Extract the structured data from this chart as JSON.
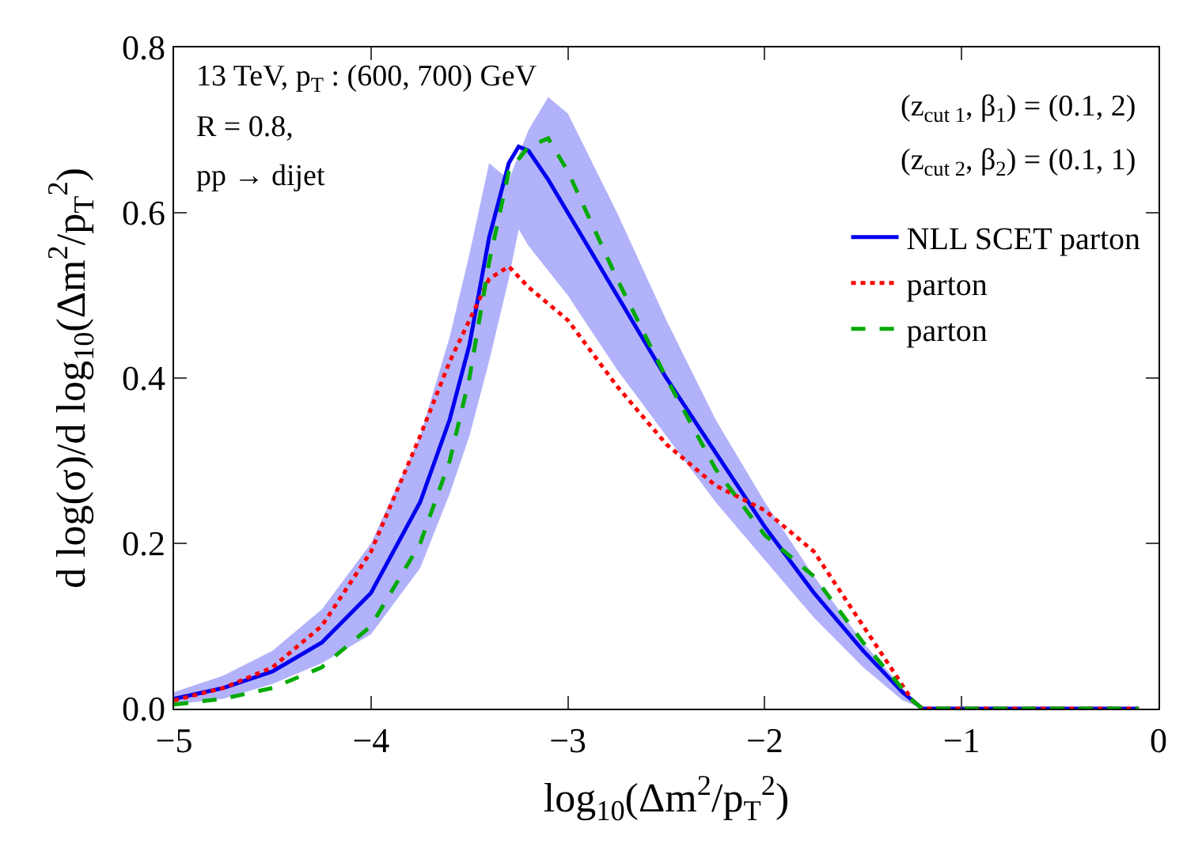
{
  "chart_data": {
    "type": "line",
    "xlabel": "log$_{10}$(Δm$^{2}$/p$_{T}$$^{2}$)",
    "ylabel": "d log(σ)/d log$_{10}$(Δm$^{2}$/p$_{T}$$^{2}$)",
    "xlim": [
      -5,
      0
    ],
    "xticks": [
      -5,
      -4,
      -3,
      -2,
      -1,
      0
    ],
    "ylim": [
      0,
      0.8
    ],
    "yticks": [
      {
        "value": 0,
        "label": "0.0"
      },
      {
        "value": 0.2,
        "label": "0.2"
      },
      {
        "value": 0.4,
        "label": "0.4"
      },
      {
        "value": 0.6,
        "label": "0.6"
      },
      {
        "value": 0.8,
        "label": "0.8"
      }
    ],
    "legend": "top right",
    "marker": "none",
    "annotations": [
      "13 TeV, p$_{T}$ : (600, 700) GeV",
      "R = 0.8,",
      "pp → dijet",
      "(z$_{cut 1}$, β$_{1}$) = (0.1, 2)",
      "(z$_{cut 2}$, β$_{2}$) = (0.1, 1)"
    ],
    "series": [
      {
        "name": "NLL SCET parton",
        "color": "#0000ee",
        "line_style": "solid",
        "x": [
          -5,
          -4.75,
          -4.5,
          -4.25,
          -4,
          -3.75,
          -3.6,
          -3.5,
          -3.4,
          -3.3,
          -3.25,
          -3.2,
          -3.1,
          -3,
          -2.75,
          -2.5,
          -2.25,
          -2,
          -1.75,
          -1.5,
          -1.3,
          -1.2,
          -1,
          -0.5,
          -0.1
        ],
        "values": [
          0.012,
          0.025,
          0.045,
          0.08,
          0.14,
          0.25,
          0.35,
          0.44,
          0.57,
          0.66,
          0.68,
          0.675,
          0.64,
          0.6,
          0.5,
          0.4,
          0.31,
          0.22,
          0.14,
          0.07,
          0.02,
          0,
          0,
          0,
          0
        ],
        "lower": [
          0.005,
          0.012,
          0.03,
          0.055,
          0.09,
          0.17,
          0.26,
          0.33,
          0.42,
          0.52,
          0.58,
          0.56,
          0.53,
          0.5,
          0.41,
          0.33,
          0.25,
          0.18,
          0.11,
          0.05,
          0.01,
          0,
          0,
          0,
          0
        ],
        "upper": [
          0.02,
          0.04,
          0.07,
          0.12,
          0.2,
          0.33,
          0.45,
          0.55,
          0.66,
          0.64,
          0.67,
          0.7,
          0.74,
          0.72,
          0.6,
          0.47,
          0.35,
          0.25,
          0.16,
          0.08,
          0.025,
          0,
          0,
          0,
          0
        ]
      },
      {
        "name": "parton",
        "color": "#ff0000",
        "line_style": "dotted",
        "x": [
          -5,
          -4.75,
          -4.5,
          -4.25,
          -4,
          -3.75,
          -3.6,
          -3.5,
          -3.4,
          -3.3,
          -3.2,
          -3,
          -2.75,
          -2.5,
          -2.25,
          -2,
          -1.75,
          -1.5,
          -1.25,
          -1.2,
          -1,
          -0.5,
          -0.1
        ],
        "values": [
          0.01,
          0.025,
          0.05,
          0.1,
          0.19,
          0.33,
          0.42,
          0.47,
          0.52,
          0.535,
          0.51,
          0.47,
          0.39,
          0.32,
          0.27,
          0.24,
          0.19,
          0.1,
          0.01,
          0,
          0,
          0,
          0
        ]
      },
      {
        "name": "parton",
        "color": "#00aa00",
        "line_style": "dashed",
        "x": [
          -5,
          -4.75,
          -4.5,
          -4.25,
          -4,
          -3.75,
          -3.6,
          -3.5,
          -3.4,
          -3.3,
          -3.2,
          -3.1,
          -3,
          -2.75,
          -2.5,
          -2.25,
          -2,
          -1.75,
          -1.5,
          -1.25,
          -1.2,
          -1,
          -0.5,
          -0.1
        ],
        "values": [
          0.005,
          0.012,
          0.025,
          0.05,
          0.1,
          0.2,
          0.3,
          0.4,
          0.54,
          0.65,
          0.68,
          0.69,
          0.65,
          0.52,
          0.4,
          0.29,
          0.21,
          0.16,
          0.08,
          0.01,
          0,
          0,
          0,
          0
        ]
      }
    ]
  }
}
